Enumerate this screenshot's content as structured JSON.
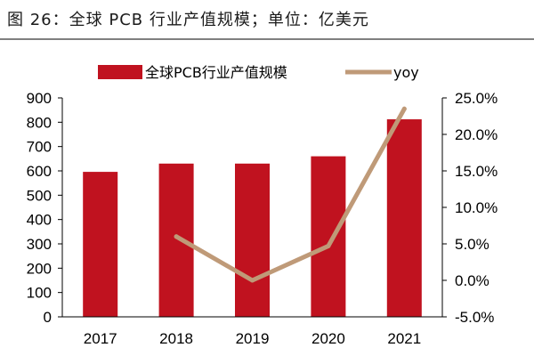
{
  "figure_title": "图 26：全球 PCB 行业产值规模；单位：亿美元",
  "colors": {
    "bar": "#c0121f",
    "line": "#bf9a78",
    "axis": "#000000"
  },
  "chart_data": {
    "type": "bar",
    "title": "",
    "categories": [
      "2017",
      "2018",
      "2019",
      "2020",
      "2021"
    ],
    "series": [
      {
        "name": "全球PCB行业产值规模",
        "type": "bar",
        "axis": "left",
        "values": [
          596,
          630,
          630,
          660,
          812
        ]
      },
      {
        "name": "yoy",
        "type": "line",
        "axis": "right",
        "values": [
          null,
          6.0,
          0.0,
          4.7,
          23.5
        ]
      }
    ],
    "y_left": {
      "label": "",
      "min": 0,
      "max": 900,
      "ticks": [
        0,
        100,
        200,
        300,
        400,
        500,
        600,
        700,
        800,
        900
      ]
    },
    "y_right": {
      "label": "",
      "min": -5,
      "max": 25,
      "ticks": [
        "-5.0%",
        "0.0%",
        "5.0%",
        "10.0%",
        "15.0%",
        "20.0%",
        "25.0%"
      ]
    },
    "legend_position": "top-center",
    "grid": false
  }
}
